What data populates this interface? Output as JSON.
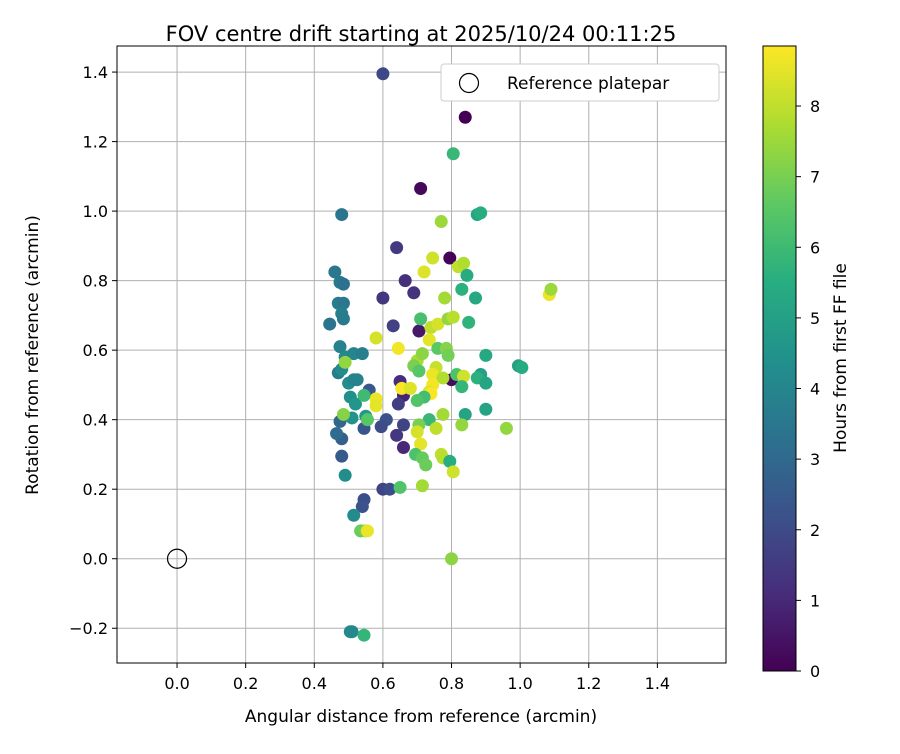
{
  "chart_data": {
    "type": "scatter",
    "title": "FOV centre drift starting at 2025/10/24 00:11:25",
    "xlabel": "Angular distance from reference (arcmin)",
    "ylabel": "Rotation from reference (arcmin)",
    "xlim": [
      -0.175,
      1.6
    ],
    "ylim": [
      -0.3,
      1.475
    ],
    "grid": true,
    "xticks": [
      "0.0",
      "0.2",
      "0.4",
      "0.6",
      "0.8",
      "1.0",
      "1.2",
      "1.4"
    ],
    "xtick_values": [
      0,
      0.2,
      0.4,
      0.6,
      0.8,
      1.0,
      1.2,
      1.4
    ],
    "yticks": [
      "−0.2",
      "0.0",
      "0.2",
      "0.4",
      "0.6",
      "0.8",
      "1.0",
      "1.2",
      "1.4"
    ],
    "ytick_values": [
      -0.2,
      0,
      0.2,
      0.4,
      0.6,
      0.8,
      1.0,
      1.2,
      1.4
    ],
    "legend": {
      "label": "Reference platepar",
      "placement": "top-right"
    },
    "reference_point": {
      "x": 0.0,
      "y": 0.0
    },
    "colorbar": {
      "label": "Hours from first FF file",
      "range": [
        0,
        8.85
      ],
      "ticks": [
        "0",
        "1",
        "2",
        "3",
        "4",
        "5",
        "6",
        "7",
        "8"
      ],
      "tick_values": [
        0,
        1,
        2,
        3,
        4,
        5,
        6,
        7,
        8
      ],
      "colormap": "viridis"
    },
    "points": [
      {
        "x": 0.84,
        "y": 1.27,
        "h": 0.0
      },
      {
        "x": 0.71,
        "y": 1.065,
        "h": 0.2
      },
      {
        "x": 0.795,
        "y": 0.865,
        "h": 0.1
      },
      {
        "x": 0.6,
        "y": 1.395,
        "h": 1.9
      },
      {
        "x": 0.64,
        "y": 0.895,
        "h": 1.5
      },
      {
        "x": 0.665,
        "y": 0.8,
        "h": 1.2
      },
      {
        "x": 0.6,
        "y": 0.75,
        "h": 1.4
      },
      {
        "x": 0.69,
        "y": 0.765,
        "h": 1.3
      },
      {
        "x": 0.63,
        "y": 0.67,
        "h": 1.7
      },
      {
        "x": 0.705,
        "y": 0.655,
        "h": 0.6
      },
      {
        "x": 0.65,
        "y": 0.51,
        "h": 1.1
      },
      {
        "x": 0.66,
        "y": 0.47,
        "h": 0.9
      },
      {
        "x": 0.645,
        "y": 0.445,
        "h": 1.6
      },
      {
        "x": 0.66,
        "y": 0.385,
        "h": 1.8
      },
      {
        "x": 0.64,
        "y": 0.355,
        "h": 1.4
      },
      {
        "x": 0.66,
        "y": 0.32,
        "h": 1.0
      },
      {
        "x": 0.61,
        "y": 0.4,
        "h": 2.2
      },
      {
        "x": 0.595,
        "y": 0.38,
        "h": 2.0
      },
      {
        "x": 0.56,
        "y": 0.485,
        "h": 2.4
      },
      {
        "x": 0.545,
        "y": 0.375,
        "h": 2.3
      },
      {
        "x": 0.6,
        "y": 0.2,
        "h": 1.8
      },
      {
        "x": 0.62,
        "y": 0.2,
        "h": 2.1
      },
      {
        "x": 0.545,
        "y": 0.17,
        "h": 2.1
      },
      {
        "x": 0.54,
        "y": 0.15,
        "h": 2.2
      },
      {
        "x": 0.8,
        "y": 0.515,
        "h": 0.3
      },
      {
        "x": 0.48,
        "y": 0.295,
        "h": 2.5
      },
      {
        "x": 0.48,
        "y": 0.345,
        "h": 2.7
      },
      {
        "x": 0.475,
        "y": 0.395,
        "h": 2.9
      },
      {
        "x": 0.465,
        "y": 0.36,
        "h": 3.1
      },
      {
        "x": 0.48,
        "y": 0.99,
        "h": 3.4
      },
      {
        "x": 0.46,
        "y": 0.825,
        "h": 3.5
      },
      {
        "x": 0.475,
        "y": 0.795,
        "h": 3.6
      },
      {
        "x": 0.485,
        "y": 0.79,
        "h": 3.3
      },
      {
        "x": 0.47,
        "y": 0.735,
        "h": 3.7
      },
      {
        "x": 0.485,
        "y": 0.735,
        "h": 3.5
      },
      {
        "x": 0.48,
        "y": 0.705,
        "h": 3.8
      },
      {
        "x": 0.485,
        "y": 0.69,
        "h": 3.6
      },
      {
        "x": 0.445,
        "y": 0.675,
        "h": 3.4
      },
      {
        "x": 0.475,
        "y": 0.61,
        "h": 3.9
      },
      {
        "x": 0.49,
        "y": 0.58,
        "h": 4.1
      },
      {
        "x": 0.515,
        "y": 0.59,
        "h": 4.0
      },
      {
        "x": 0.54,
        "y": 0.59,
        "h": 3.8
      },
      {
        "x": 0.47,
        "y": 0.535,
        "h": 3.7
      },
      {
        "x": 0.48,
        "y": 0.545,
        "h": 4.2
      },
      {
        "x": 0.5,
        "y": 0.505,
        "h": 4.3
      },
      {
        "x": 0.515,
        "y": 0.515,
        "h": 4.0
      },
      {
        "x": 0.525,
        "y": 0.515,
        "h": 3.9
      },
      {
        "x": 0.505,
        "y": 0.465,
        "h": 4.4
      },
      {
        "x": 0.52,
        "y": 0.445,
        "h": 4.6
      },
      {
        "x": 0.51,
        "y": 0.405,
        "h": 4.5
      },
      {
        "x": 0.55,
        "y": 0.41,
        "h": 4.7
      },
      {
        "x": 0.49,
        "y": 0.24,
        "h": 4.3
      },
      {
        "x": 0.515,
        "y": 0.125,
        "h": 4.2
      },
      {
        "x": 0.51,
        "y": -0.21,
        "h": 4.0
      },
      {
        "x": 0.505,
        "y": -0.21,
        "h": 4.1
      },
      {
        "x": 0.545,
        "y": -0.22,
        "h": 5.8
      },
      {
        "x": 0.535,
        "y": 0.08,
        "h": 6.8
      },
      {
        "x": 0.55,
        "y": 0.08,
        "h": 7.1
      },
      {
        "x": 0.555,
        "y": 0.08,
        "h": 8.6
      },
      {
        "x": 0.805,
        "y": 1.165,
        "h": 5.9
      },
      {
        "x": 0.875,
        "y": 0.99,
        "h": 5.2
      },
      {
        "x": 0.885,
        "y": 0.995,
        "h": 5.5
      },
      {
        "x": 0.77,
        "y": 0.97,
        "h": 7.5
      },
      {
        "x": 0.745,
        "y": 0.865,
        "h": 8.2
      },
      {
        "x": 0.82,
        "y": 0.84,
        "h": 8.0
      },
      {
        "x": 0.835,
        "y": 0.85,
        "h": 7.8
      },
      {
        "x": 0.845,
        "y": 0.815,
        "h": 5.4
      },
      {
        "x": 0.83,
        "y": 0.775,
        "h": 5.6
      },
      {
        "x": 0.72,
        "y": 0.825,
        "h": 8.4
      },
      {
        "x": 0.78,
        "y": 0.75,
        "h": 7.6
      },
      {
        "x": 0.87,
        "y": 0.75,
        "h": 5.3
      },
      {
        "x": 0.71,
        "y": 0.69,
        "h": 6.2
      },
      {
        "x": 0.74,
        "y": 0.665,
        "h": 8.0
      },
      {
        "x": 0.76,
        "y": 0.675,
        "h": 8.3
      },
      {
        "x": 0.79,
        "y": 0.69,
        "h": 7.4
      },
      {
        "x": 0.805,
        "y": 0.695,
        "h": 7.9
      },
      {
        "x": 0.85,
        "y": 0.68,
        "h": 5.7
      },
      {
        "x": 0.735,
        "y": 0.63,
        "h": 8.5
      },
      {
        "x": 0.7,
        "y": 0.57,
        "h": 7.7
      },
      {
        "x": 0.715,
        "y": 0.59,
        "h": 7.3
      },
      {
        "x": 0.76,
        "y": 0.605,
        "h": 6.6
      },
      {
        "x": 0.785,
        "y": 0.605,
        "h": 7.2
      },
      {
        "x": 0.79,
        "y": 0.585,
        "h": 6.9
      },
      {
        "x": 0.69,
        "y": 0.555,
        "h": 7.0
      },
      {
        "x": 0.705,
        "y": 0.54,
        "h": 6.5
      },
      {
        "x": 0.755,
        "y": 0.55,
        "h": 8.1
      },
      {
        "x": 0.745,
        "y": 0.53,
        "h": 8.6
      },
      {
        "x": 0.775,
        "y": 0.52,
        "h": 7.8
      },
      {
        "x": 0.815,
        "y": 0.53,
        "h": 6.3
      },
      {
        "x": 0.835,
        "y": 0.525,
        "h": 8.2
      },
      {
        "x": 0.745,
        "y": 0.5,
        "h": 8.7
      },
      {
        "x": 0.735,
        "y": 0.48,
        "h": 8.4
      },
      {
        "x": 0.74,
        "y": 0.475,
        "h": 8.8
      },
      {
        "x": 0.83,
        "y": 0.495,
        "h": 5.8
      },
      {
        "x": 0.72,
        "y": 0.465,
        "h": 6.1
      },
      {
        "x": 0.7,
        "y": 0.455,
        "h": 6.4
      },
      {
        "x": 0.735,
        "y": 0.4,
        "h": 5.9
      },
      {
        "x": 0.775,
        "y": 0.415,
        "h": 7.6
      },
      {
        "x": 0.84,
        "y": 0.415,
        "h": 5.1
      },
      {
        "x": 0.83,
        "y": 0.385,
        "h": 7.4
      },
      {
        "x": 0.705,
        "y": 0.385,
        "h": 7.0
      },
      {
        "x": 0.7,
        "y": 0.365,
        "h": 8.3
      },
      {
        "x": 0.755,
        "y": 0.375,
        "h": 8.0
      },
      {
        "x": 0.71,
        "y": 0.33,
        "h": 8.5
      },
      {
        "x": 0.695,
        "y": 0.3,
        "h": 6.3
      },
      {
        "x": 0.715,
        "y": 0.29,
        "h": 6.7
      },
      {
        "x": 0.77,
        "y": 0.3,
        "h": 8.0
      },
      {
        "x": 0.775,
        "y": 0.29,
        "h": 7.9
      },
      {
        "x": 0.725,
        "y": 0.27,
        "h": 6.8
      },
      {
        "x": 0.795,
        "y": 0.28,
        "h": 5.5
      },
      {
        "x": 0.805,
        "y": 0.25,
        "h": 8.2
      },
      {
        "x": 0.715,
        "y": 0.21,
        "h": 7.6
      },
      {
        "x": 0.65,
        "y": 0.205,
        "h": 6.4
      },
      {
        "x": 0.8,
        "y": 0.0,
        "h": 7.3
      },
      {
        "x": 0.9,
        "y": 0.585,
        "h": 5.3
      },
      {
        "x": 0.885,
        "y": 0.53,
        "h": 5.0
      },
      {
        "x": 0.875,
        "y": 0.52,
        "h": 5.6
      },
      {
        "x": 0.9,
        "y": 0.505,
        "h": 5.2
      },
      {
        "x": 0.9,
        "y": 0.43,
        "h": 5.1
      },
      {
        "x": 0.995,
        "y": 0.555,
        "h": 5.0
      },
      {
        "x": 1.005,
        "y": 0.55,
        "h": 5.4
      },
      {
        "x": 0.96,
        "y": 0.375,
        "h": 7.4
      },
      {
        "x": 1.085,
        "y": 0.76,
        "h": 8.6
      },
      {
        "x": 1.09,
        "y": 0.775,
        "h": 7.5
      },
      {
        "x": 0.58,
        "y": 0.46,
        "h": 8.6
      },
      {
        "x": 0.58,
        "y": 0.44,
        "h": 8.5
      },
      {
        "x": 0.58,
        "y": 0.635,
        "h": 8.3
      },
      {
        "x": 0.645,
        "y": 0.605,
        "h": 8.7
      },
      {
        "x": 0.655,
        "y": 0.49,
        "h": 8.8
      },
      {
        "x": 0.68,
        "y": 0.49,
        "h": 8.4
      },
      {
        "x": 0.49,
        "y": 0.565,
        "h": 7.4
      },
      {
        "x": 0.485,
        "y": 0.415,
        "h": 7.2
      },
      {
        "x": 0.555,
        "y": 0.4,
        "h": 6.5
      },
      {
        "x": 0.545,
        "y": 0.47,
        "h": 6.0
      }
    ]
  }
}
